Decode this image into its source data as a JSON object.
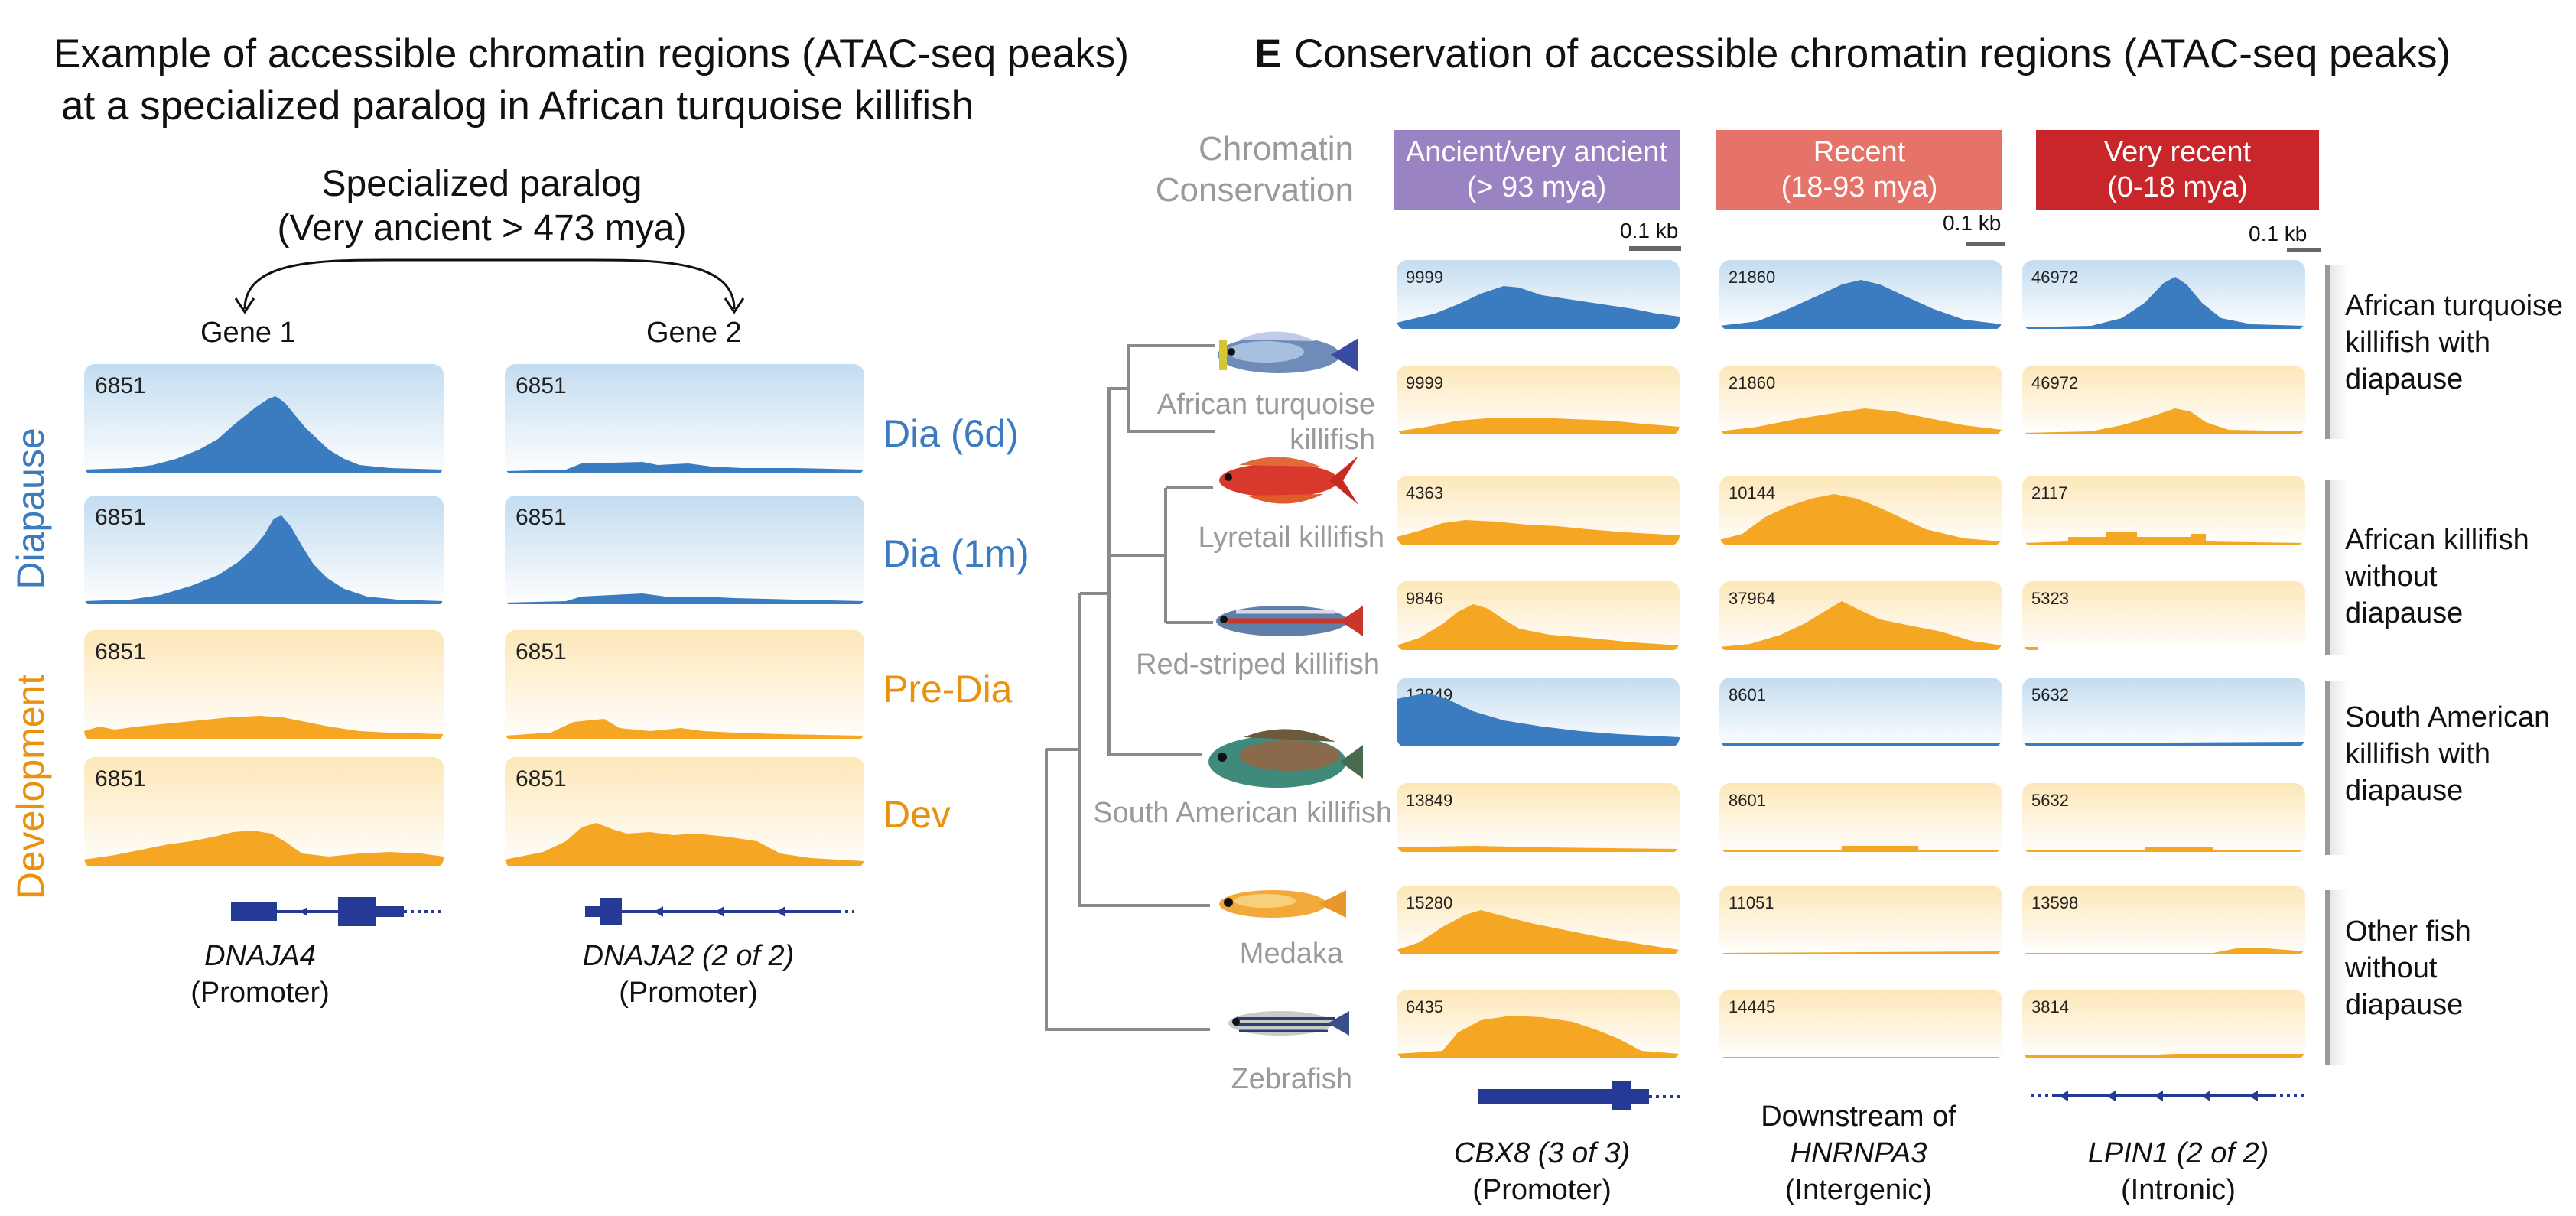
{
  "panel_d": {
    "title_line1": "Example of accessible chromatin regions (ATAC-seq peaks)",
    "title_line2": "at a specialized paralog in African turquoise killifish",
    "paralog_line1": "Specialized paralog",
    "paralog_line2": "(Very ancient > 473 mya)",
    "gene1": "Gene 1",
    "gene2": "Gene 2",
    "group_diapause": "Diapause",
    "group_development": "Development",
    "conditions": [
      "Dia (6d)",
      "Dia (1m)",
      "Pre-Dia",
      "Dev"
    ],
    "track_scale": "6851",
    "gene1_name": "DNAJA4",
    "gene1_region": "(Promoter)",
    "gene2_name": "DNAJA2 (2 of 2)",
    "gene2_region": "(Promoter)"
  },
  "panel_e": {
    "letter": "E",
    "title": "Conservation of accessible chromatin regions (ATAC-seq peaks)",
    "conservation_label_line1": "Chromatin",
    "conservation_label_line2": "Conservation",
    "columns": [
      {
        "line1": "Ancient/very ancient",
        "line2": "(> 93 mya)",
        "color": "#9a83c3",
        "scalebar": "0.1 kb"
      },
      {
        "line1": "Recent",
        "line2": "(18-93 mya)",
        "color": "#e5736a",
        "scalebar": "0.1 kb"
      },
      {
        "line1": "Very recent",
        "line2": "(0-18 mya)",
        "color": "#c9262c",
        "scalebar": "0.1 kb"
      }
    ],
    "species": {
      "turquoise_line1": "African turquoise",
      "turquoise_line2": "killifish",
      "lyretail": "Lyretail killifish",
      "redstriped": "Red-striped killifish",
      "southamerican": "South American killifish",
      "medaka": "Medaka",
      "zebrafish": "Zebrafish"
    },
    "rows": [
      {
        "type": "blue",
        "values": [
          "9999",
          "21860",
          "46972"
        ]
      },
      {
        "type": "orange",
        "values": [
          "9999",
          "21860",
          "46972"
        ]
      },
      {
        "type": "orange",
        "values": [
          "4363",
          "10144",
          "2117"
        ]
      },
      {
        "type": "orange",
        "values": [
          "9846",
          "37964",
          "5323"
        ]
      },
      {
        "type": "blue",
        "values": [
          "13849",
          "8601",
          "5632"
        ]
      },
      {
        "type": "orange",
        "values": [
          "13849",
          "8601",
          "5632"
        ]
      },
      {
        "type": "orange",
        "values": [
          "15280",
          "11051",
          "13598"
        ]
      },
      {
        "type": "orange",
        "values": [
          "6435",
          "14445",
          "3814"
        ]
      }
    ],
    "groups": [
      {
        "line1": "African turquoise",
        "line2": "killifish with",
        "line3": "diapause"
      },
      {
        "line1": "African killifish",
        "line2": "without",
        "line3": "diapause"
      },
      {
        "line1": "South American",
        "line2": "killifish with",
        "line3": "diapause"
      },
      {
        "line1": "Other fish",
        "line2": "without",
        "line3": "diapause"
      }
    ],
    "genes": [
      {
        "name": "CBX8 (3 of 3)",
        "region": "(Promoter)"
      },
      {
        "prefix": "Downstream of",
        "name": "HNRNPA3",
        "region": "(Intergenic)"
      },
      {
        "name": "LPIN1 (2 of 2)",
        "region": "(Intronic)"
      }
    ]
  },
  "colors": {
    "blue_signal": "#3b7bbf",
    "orange_signal": "#f5a623",
    "gene_model": "#253a94",
    "tree": "#8a8a8a"
  }
}
